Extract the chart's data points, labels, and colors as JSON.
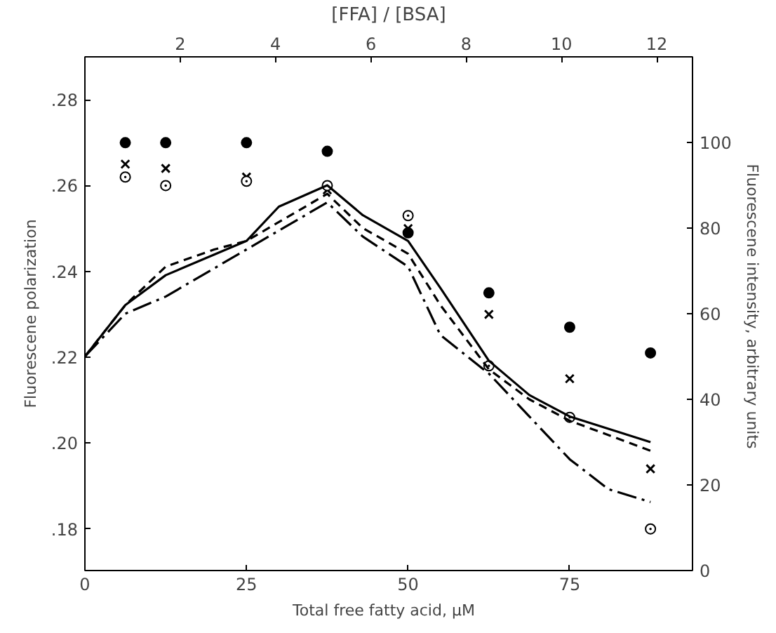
{
  "chart_data": {
    "type": "scatter",
    "xlabel": "Total free fatty acid,   µM",
    "ylabel": "Fluorescene polarization",
    "y2label": "Fluorescene intensity,    arbitrary units",
    "x2label": "[FFA] / [BSA]",
    "xlim": [
      0,
      94
    ],
    "xticks": [
      0,
      25,
      50,
      75
    ],
    "x2lim": [
      0,
      12.75
    ],
    "x2ticks": [
      2,
      4,
      6,
      8,
      10,
      12
    ],
    "ylim": [
      0.1703,
      0.29
    ],
    "yticks": [
      {
        "value": 0.18,
        "label": ".18"
      },
      {
        "value": 0.2,
        "label": ".20"
      },
      {
        "value": 0.22,
        "label": ".22"
      },
      {
        "value": 0.24,
        "label": ".24"
      },
      {
        "value": 0.26,
        "label": ".26"
      },
      {
        "value": 0.28,
        "label": ".28"
      }
    ],
    "y2lim": [
      0,
      120
    ],
    "y2ticks": [
      0,
      20,
      40,
      60,
      80,
      100
    ],
    "grid": false,
    "series": [
      {
        "marker": "circle",
        "color": "#000000",
        "x": [
          6.25,
          12.5,
          25,
          37.5,
          50,
          62.5,
          75,
          87.5
        ],
        "values": [
          0.27,
          0.27,
          0.27,
          0.268,
          0.249,
          0.235,
          0.227,
          0.221
        ]
      },
      {
        "marker": "cross",
        "color": "#000000",
        "x": [
          6.25,
          12.5,
          25,
          37.5,
          50,
          62.5,
          75,
          87.5
        ],
        "values": [
          0.265,
          0.264,
          0.262,
          0.259,
          0.25,
          0.23,
          0.215,
          0.194
        ]
      },
      {
        "marker": "circle_dot",
        "color": "#000000",
        "x": [
          6.25,
          12.5,
          25,
          37.5,
          50,
          62.5,
          75,
          87.5
        ],
        "values": [
          0.262,
          0.26,
          0.261,
          0.26,
          0.253,
          0.218,
          0.206,
          0.18
        ]
      },
      {
        "type": "line",
        "axis": "y2",
        "line_style": "solid",
        "color": "#000000",
        "x": [
          0,
          6.25,
          12.5,
          25,
          30,
          37.5,
          43,
          50,
          55,
          62.5,
          68.75,
          75,
          87.5
        ],
        "values": [
          50,
          62,
          69,
          77,
          85,
          90,
          83,
          77,
          66,
          49,
          41,
          36,
          30
        ]
      },
      {
        "type": "line",
        "axis": "y2",
        "line_style": "dashed",
        "color": "#000000",
        "x": [
          0,
          6.25,
          12.5,
          20,
          25,
          37.5,
          43,
          50,
          55,
          62.5,
          68.75,
          75,
          87.5
        ],
        "values": [
          50,
          62,
          71,
          75,
          77,
          88,
          80,
          74,
          62,
          47,
          40,
          35,
          28
        ]
      },
      {
        "type": "line",
        "axis": "y2",
        "line_style": "dashdot",
        "color": "#000000",
        "x": [
          0,
          6.25,
          12.5,
          25,
          37.5,
          43,
          50,
          55,
          62.5,
          68.75,
          75,
          81,
          87.5
        ],
        "values": [
          50,
          60,
          64,
          75,
          86,
          78,
          71,
          55,
          46,
          36,
          26,
          19,
          16
        ]
      }
    ]
  }
}
